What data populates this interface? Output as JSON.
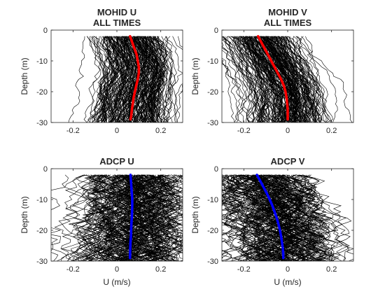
{
  "chart_data": [
    {
      "type": "line",
      "title": [
        "MOHID U",
        "ALL TIMES"
      ],
      "xlabel": "",
      "ylabel": "Depth (m)",
      "xlim": [
        -0.3,
        0.3
      ],
      "ylim": [
        -30,
        0
      ],
      "xticks": [
        -0.2,
        0,
        0.2
      ],
      "xtick_labels": [
        "-0.2",
        "0",
        "0.2"
      ],
      "yticks": [
        0,
        -10,
        -20,
        -30
      ],
      "ytick_labels": [
        "0",
        "-10",
        "-20",
        "-30"
      ],
      "ensemble": {
        "color": "#000000",
        "count": 220,
        "spread": 0.08,
        "noise": 0.01
      },
      "mean_profile": {
        "color": "#ff0000",
        "x": [
          0.06,
          0.07,
          0.08,
          0.09,
          0.095,
          0.1,
          0.1,
          0.095,
          0.088,
          0.082,
          0.076,
          0.072,
          0.068,
          0.065,
          0.062
        ],
        "y": [
          -2,
          -4,
          -6,
          -8,
          -10,
          -12,
          -14,
          -16,
          -18,
          -20,
          -22,
          -24,
          -26,
          -28,
          -29
        ]
      }
    },
    {
      "type": "line",
      "title": [
        "MOHID V",
        "ALL TIMES"
      ],
      "xlabel": "",
      "ylabel": "Depth (m)",
      "xlim": [
        -0.3,
        0.3
      ],
      "ylim": [
        -30,
        0
      ],
      "xticks": [
        -0.2,
        0,
        0.2
      ],
      "xtick_labels": [
        "-0.2",
        "0",
        "0.2"
      ],
      "yticks": [
        0,
        -10,
        -20,
        -30
      ],
      "ytick_labels": [
        "0",
        "-10",
        "-20",
        "-30"
      ],
      "ensemble": {
        "color": "#000000",
        "count": 220,
        "spread": 0.085,
        "noise": 0.01
      },
      "mean_profile": {
        "color": "#ff0000",
        "x": [
          -0.135,
          -0.12,
          -0.105,
          -0.09,
          -0.075,
          -0.06,
          -0.045,
          -0.03,
          -0.018,
          -0.01,
          -0.005,
          -0.002,
          0.0,
          0.0,
          0.0
        ],
        "y": [
          -2,
          -4,
          -6,
          -8,
          -10,
          -12,
          -14,
          -16,
          -18,
          -20,
          -22,
          -24,
          -26,
          -28,
          -29
        ]
      }
    },
    {
      "type": "line",
      "title": [
        "ADCP U"
      ],
      "xlabel": "U (m/s)",
      "ylabel": "Depth (m)",
      "xlim": [
        -0.3,
        0.3
      ],
      "ylim": [
        -30,
        0
      ],
      "xticks": [
        -0.2,
        0,
        0.2
      ],
      "xtick_labels": [
        "-0.2",
        "0",
        "0.2"
      ],
      "yticks": [
        0,
        -10,
        -20,
        -30
      ],
      "ytick_labels": [
        "0",
        "-10",
        "-20",
        "-30"
      ],
      "ensemble": {
        "color": "#000000",
        "count": 180,
        "spread": 0.13,
        "noise": 0.035
      },
      "mean_profile": {
        "color": "#0000ff",
        "x": [
          0.062,
          0.064,
          0.066,
          0.068,
          0.07,
          0.07,
          0.069,
          0.068,
          0.066,
          0.065,
          0.064,
          0.062,
          0.061,
          0.06,
          0.06
        ],
        "y": [
          -2,
          -4,
          -6,
          -8,
          -10,
          -12,
          -14,
          -16,
          -18,
          -20,
          -22,
          -24,
          -26,
          -28,
          -29
        ]
      }
    },
    {
      "type": "line",
      "title": [
        "ADCP V"
      ],
      "xlabel": "U (m/s)",
      "ylabel": "Depth (m)",
      "xlim": [
        -0.3,
        0.3
      ],
      "ylim": [
        -30,
        0
      ],
      "xticks": [
        -0.2,
        0,
        0.2
      ],
      "xtick_labels": [
        "-0.2",
        "0",
        "0.2"
      ],
      "yticks": [
        0,
        -10,
        -20,
        -30
      ],
      "ytick_labels": [
        "0",
        "-10",
        "-20",
        "-30"
      ],
      "ensemble": {
        "color": "#000000",
        "count": 180,
        "spread": 0.12,
        "noise": 0.035
      },
      "mean_profile": {
        "color": "#0000ff",
        "x": [
          -0.14,
          -0.125,
          -0.11,
          -0.095,
          -0.082,
          -0.07,
          -0.06,
          -0.05,
          -0.042,
          -0.035,
          -0.03,
          -0.026,
          -0.022,
          -0.02,
          -0.02
        ],
        "y": [
          -2,
          -4,
          -6,
          -8,
          -10,
          -12,
          -14,
          -16,
          -18,
          -20,
          -22,
          -24,
          -26,
          -28,
          -29
        ]
      }
    }
  ]
}
